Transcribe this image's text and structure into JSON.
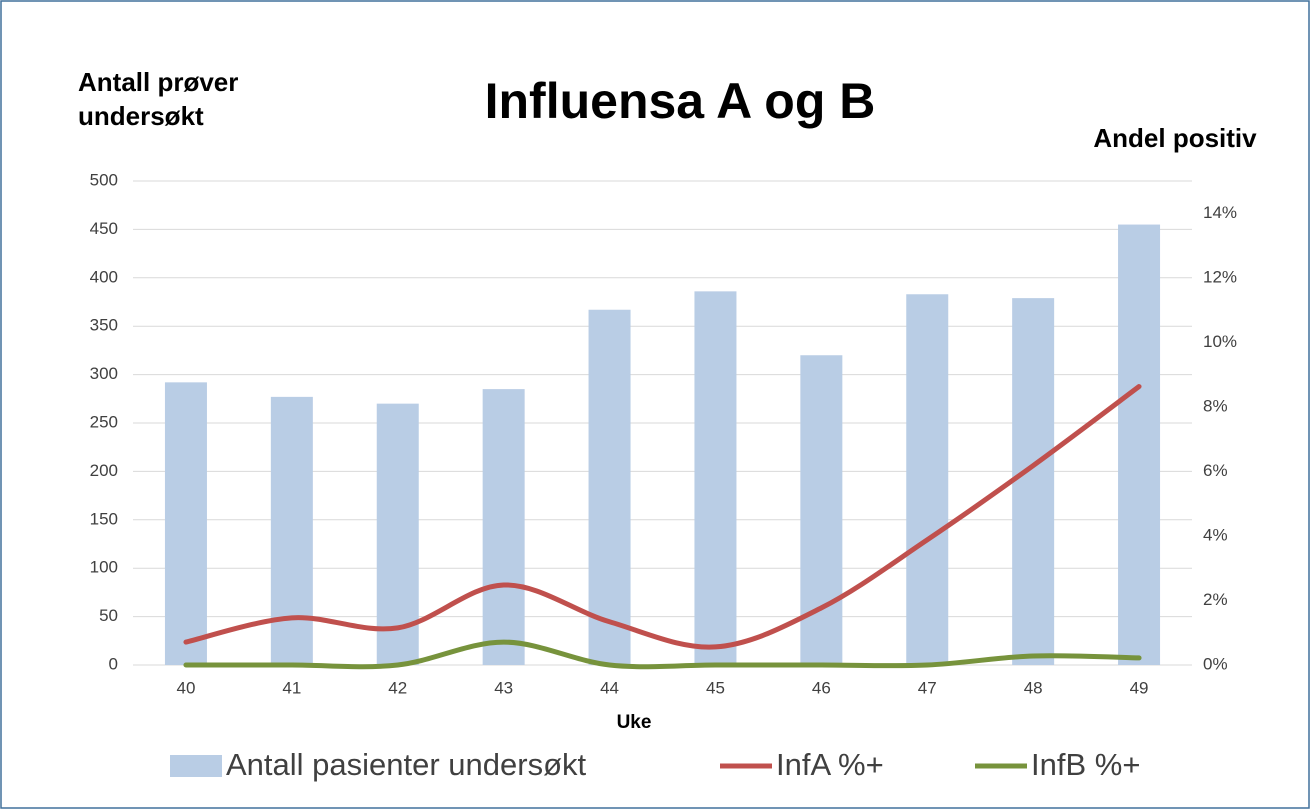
{
  "chart_data": {
    "type": "bar+line",
    "title": "Influensa A og B",
    "y_label": "Antall prøver undersøkt",
    "y2_label": "Andel positiv",
    "x_label": "Uke",
    "categories": [
      "40",
      "41",
      "42",
      "43",
      "44",
      "45",
      "46",
      "47",
      "48",
      "49"
    ],
    "series": [
      {
        "name": "Antall pasienter undersøkt",
        "type": "bar",
        "color": "#b9cde5",
        "values": [
          292,
          277,
          270,
          285,
          367,
          386,
          320,
          383,
          379,
          455
        ]
      },
      {
        "name": "InfA %+",
        "type": "line",
        "axis": "y2",
        "color": "#c0504d",
        "values": [
          0.71,
          1.46,
          1.15,
          2.48,
          1.34,
          0.56,
          1.77,
          3.88,
          6.18,
          8.63
        ]
      },
      {
        "name": "InfB %+",
        "type": "line",
        "axis": "y2",
        "color": "#77933c",
        "values": [
          0,
          0,
          0,
          0.71,
          0,
          0,
          0,
          0,
          0.28,
          0.22
        ]
      }
    ],
    "ylim": [
      0,
      500
    ],
    "yticks": [
      0,
      50,
      100,
      150,
      200,
      250,
      300,
      350,
      400,
      450,
      500
    ],
    "y2lim": [
      0,
      15
    ],
    "y2ticks": [
      {
        "value": 0,
        "label": "0%"
      },
      {
        "value": 2,
        "label": "2%"
      },
      {
        "value": 4,
        "label": "4%"
      },
      {
        "value": 6,
        "label": "6%"
      },
      {
        "value": 8,
        "label": "8%"
      },
      {
        "value": 10,
        "label": "10%"
      },
      {
        "value": 12,
        "label": "12%"
      },
      {
        "value": 14,
        "label": "14%"
      }
    ],
    "grid": true,
    "smooth": true
  }
}
